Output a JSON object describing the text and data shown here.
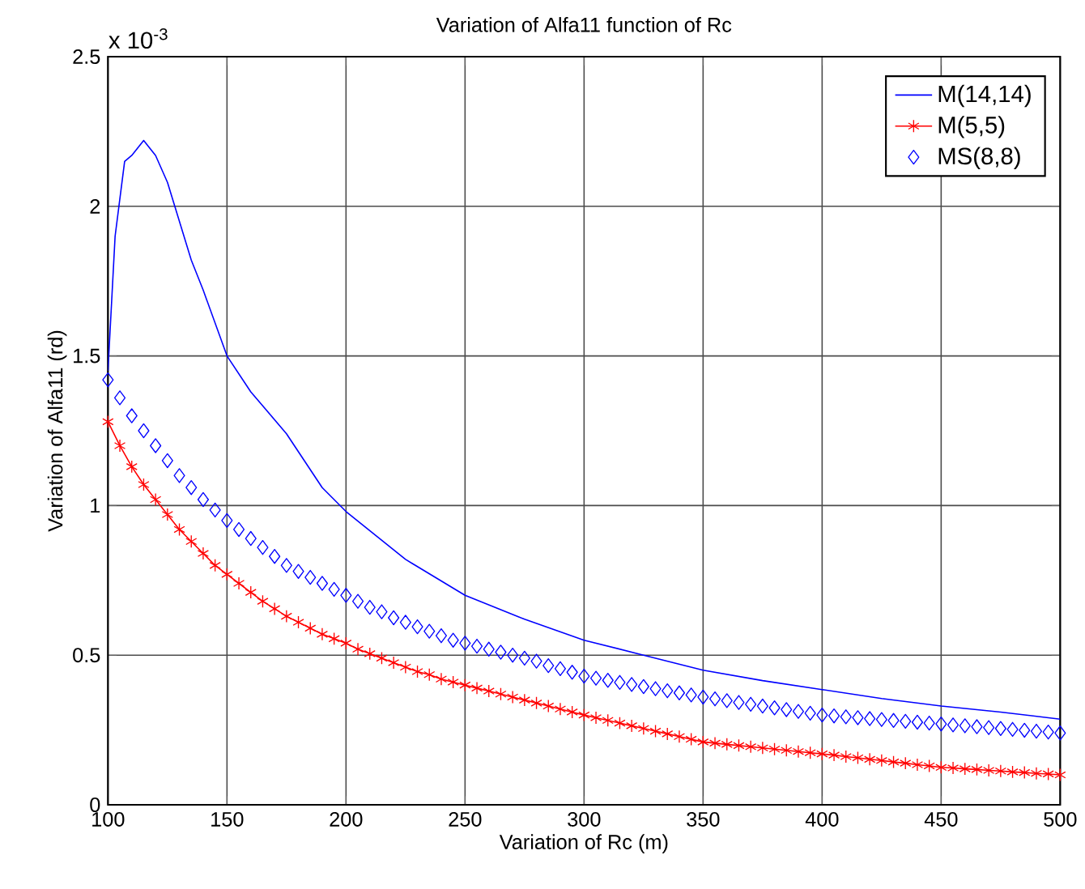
{
  "chart_data": {
    "type": "line",
    "title": "Variation of Alfa11 function of Rc",
    "xlabel": "Variation of Rc (m)",
    "ylabel": "Variation of Alfa11 (rd)",
    "annotations": [
      "x 10$^{-3}$"
    ],
    "xlim": [
      100,
      500
    ],
    "xticks": [
      100,
      150,
      200,
      250,
      300,
      350,
      400,
      450,
      500
    ],
    "ylim": [
      0,
      2.5
    ],
    "yticks": [
      0,
      0.5,
      1,
      1.5,
      2,
      2.5
    ],
    "grid": true,
    "legend": "top right",
    "x": [
      100,
      105,
      110,
      115,
      120,
      125,
      130,
      135,
      140,
      145,
      150,
      155,
      160,
      165,
      170,
      175,
      180,
      185,
      190,
      195,
      200,
      205,
      210,
      215,
      220,
      225,
      230,
      235,
      240,
      245,
      250,
      255,
      260,
      265,
      270,
      275,
      280,
      285,
      290,
      295,
      300,
      305,
      310,
      315,
      320,
      325,
      330,
      335,
      340,
      345,
      350,
      355,
      360,
      365,
      370,
      375,
      380,
      385,
      390,
      395,
      400,
      405,
      410,
      415,
      420,
      425,
      430,
      435,
      440,
      445,
      450,
      455,
      460,
      465,
      470,
      475,
      480,
      485,
      490,
      495,
      500
    ],
    "series": [
      {
        "name": "M(14,14)",
        "color": "#0000ff",
        "marker": "none",
        "line_style": "solid",
        "x": [
          100,
          103,
          107,
          110,
          115,
          120,
          125,
          130,
          135,
          140,
          150,
          160,
          175,
          190,
          200,
          225,
          250,
          275,
          300,
          325,
          350,
          375,
          400,
          425,
          450,
          475,
          500
        ],
        "values": [
          1.45,
          1.9,
          2.15,
          2.17,
          2.22,
          2.17,
          2.08,
          1.95,
          1.82,
          1.72,
          1.5,
          1.38,
          1.24,
          1.06,
          0.98,
          0.82,
          0.7,
          0.62,
          0.55,
          0.5,
          0.45,
          0.415,
          0.385,
          0.355,
          0.33,
          0.31,
          0.286
        ]
      },
      {
        "name": "M(5,5)",
        "color": "#ff0000",
        "marker": "cross",
        "line_style": "solid",
        "values": [
          1.28,
          1.2,
          1.13,
          1.07,
          1.02,
          0.97,
          0.92,
          0.88,
          0.84,
          0.8,
          0.77,
          0.74,
          0.71,
          0.68,
          0.655,
          0.63,
          0.61,
          0.59,
          0.57,
          0.555,
          0.54,
          0.52,
          0.505,
          0.49,
          0.475,
          0.46,
          0.445,
          0.435,
          0.42,
          0.41,
          0.4,
          0.39,
          0.38,
          0.37,
          0.36,
          0.35,
          0.34,
          0.33,
          0.32,
          0.31,
          0.3,
          0.291,
          0.282,
          0.273,
          0.264,
          0.255,
          0.246,
          0.237,
          0.228,
          0.219,
          0.21,
          0.206,
          0.202,
          0.198,
          0.194,
          0.19,
          0.186,
          0.182,
          0.178,
          0.174,
          0.17,
          0.166,
          0.161,
          0.157,
          0.152,
          0.148,
          0.143,
          0.139,
          0.134,
          0.13,
          0.125,
          0.123,
          0.12,
          0.118,
          0.115,
          0.113,
          0.11,
          0.108,
          0.105,
          0.103,
          0.1
        ]
      },
      {
        "name": "MS(8,8)",
        "type": "scatter",
        "color": "#0000ff",
        "marker": "diamond",
        "values": [
          1.42,
          1.36,
          1.3,
          1.25,
          1.2,
          1.15,
          1.1,
          1.06,
          1.02,
          0.985,
          0.95,
          0.92,
          0.89,
          0.86,
          0.83,
          0.8,
          0.78,
          0.76,
          0.74,
          0.72,
          0.7,
          0.68,
          0.66,
          0.645,
          0.625,
          0.61,
          0.595,
          0.58,
          0.565,
          0.55,
          0.54,
          0.53,
          0.52,
          0.51,
          0.5,
          0.49,
          0.48,
          0.465,
          0.455,
          0.443,
          0.43,
          0.423,
          0.416,
          0.409,
          0.402,
          0.395,
          0.388,
          0.381,
          0.374,
          0.367,
          0.36,
          0.354,
          0.348,
          0.342,
          0.336,
          0.33,
          0.324,
          0.318,
          0.312,
          0.306,
          0.3,
          0.297,
          0.294,
          0.291,
          0.288,
          0.285,
          0.282,
          0.279,
          0.276,
          0.273,
          0.27,
          0.267,
          0.264,
          0.261,
          0.258,
          0.255,
          0.252,
          0.249,
          0.246,
          0.243,
          0.24
        ]
      }
    ]
  }
}
